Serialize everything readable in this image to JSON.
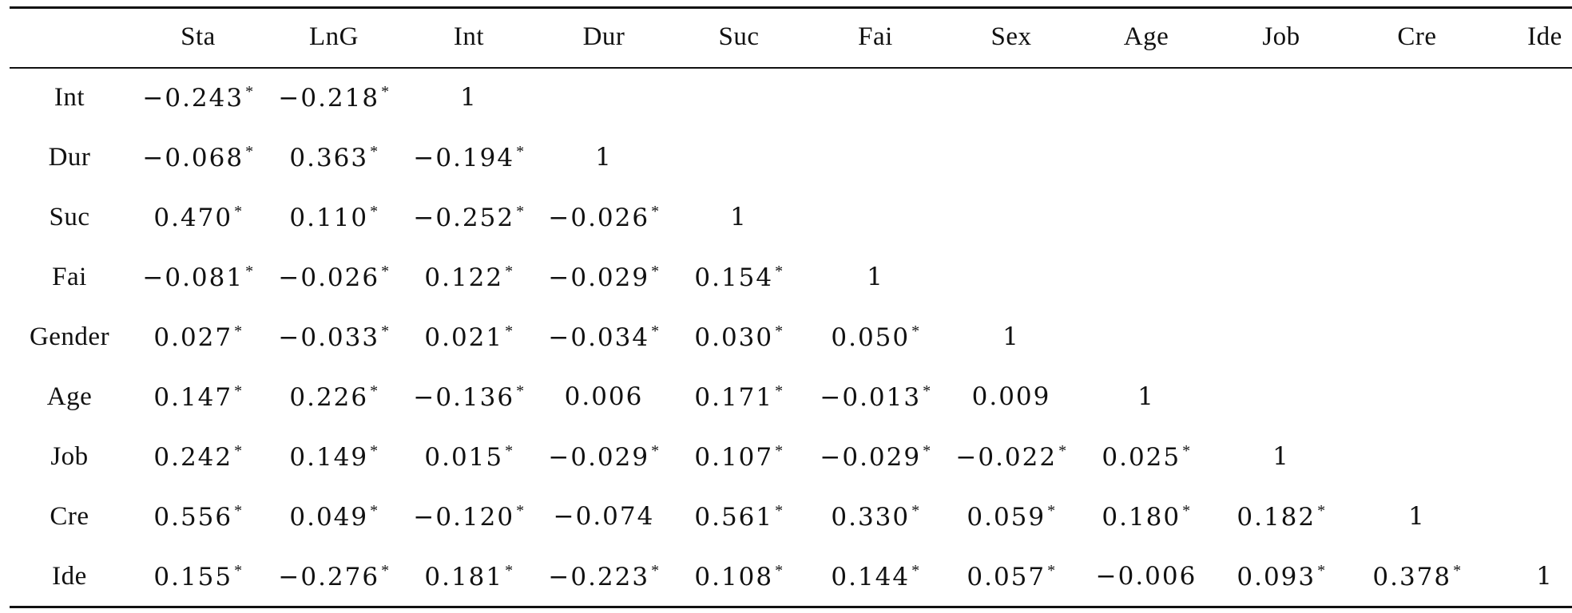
{
  "table": {
    "columns": [
      "",
      "Sta",
      "LnG",
      "Int",
      "Dur",
      "Suc",
      "Fai",
      "Sex",
      "Age",
      "Job",
      "Cre",
      "Ide"
    ],
    "rows": [
      {
        "label": "Int",
        "cells": [
          "−0.243*",
          "−0.218*",
          "1",
          "",
          "",
          "",
          "",
          "",
          "",
          "",
          ""
        ]
      },
      {
        "label": "Dur",
        "cells": [
          "−0.068*",
          "0.363*",
          "−0.194*",
          "1",
          "",
          "",
          "",
          "",
          "",
          "",
          ""
        ]
      },
      {
        "label": "Suc",
        "cells": [
          "0.470*",
          "0.110*",
          "−0.252*",
          "−0.026*",
          "1",
          "",
          "",
          "",
          "",
          "",
          ""
        ]
      },
      {
        "label": "Fai",
        "cells": [
          "−0.081*",
          "−0.026*",
          "0.122*",
          "−0.029*",
          "0.154*",
          "1",
          "",
          "",
          "",
          "",
          ""
        ]
      },
      {
        "label": "Gender",
        "cells": [
          "0.027*",
          "−0.033*",
          "0.021*",
          "−0.034*",
          "0.030*",
          "0.050*",
          "1",
          "",
          "",
          "",
          ""
        ]
      },
      {
        "label": "Age",
        "cells": [
          "0.147*",
          "0.226*",
          "−0.136*",
          "0.006",
          "0.171*",
          "−0.013*",
          "0.009",
          "1",
          "",
          "",
          ""
        ]
      },
      {
        "label": "Job",
        "cells": [
          "0.242*",
          "0.149*",
          "0.015*",
          "−0.029*",
          "0.107*",
          "−0.029*",
          "−0.022*",
          "0.025*",
          "1",
          "",
          ""
        ]
      },
      {
        "label": "Cre",
        "cells": [
          "0.556*",
          "0.049*",
          "−0.120*",
          "−0.074",
          "0.561*",
          "0.330*",
          "0.059*",
          "0.180*",
          "0.182*",
          "1",
          ""
        ]
      },
      {
        "label": "Ide",
        "cells": [
          "0.155*",
          "−0.276*",
          "0.181*",
          "−0.223*",
          "0.108*",
          "0.144*",
          "0.057*",
          "−0.006",
          "0.093*",
          "0.378*",
          "1"
        ]
      }
    ]
  }
}
